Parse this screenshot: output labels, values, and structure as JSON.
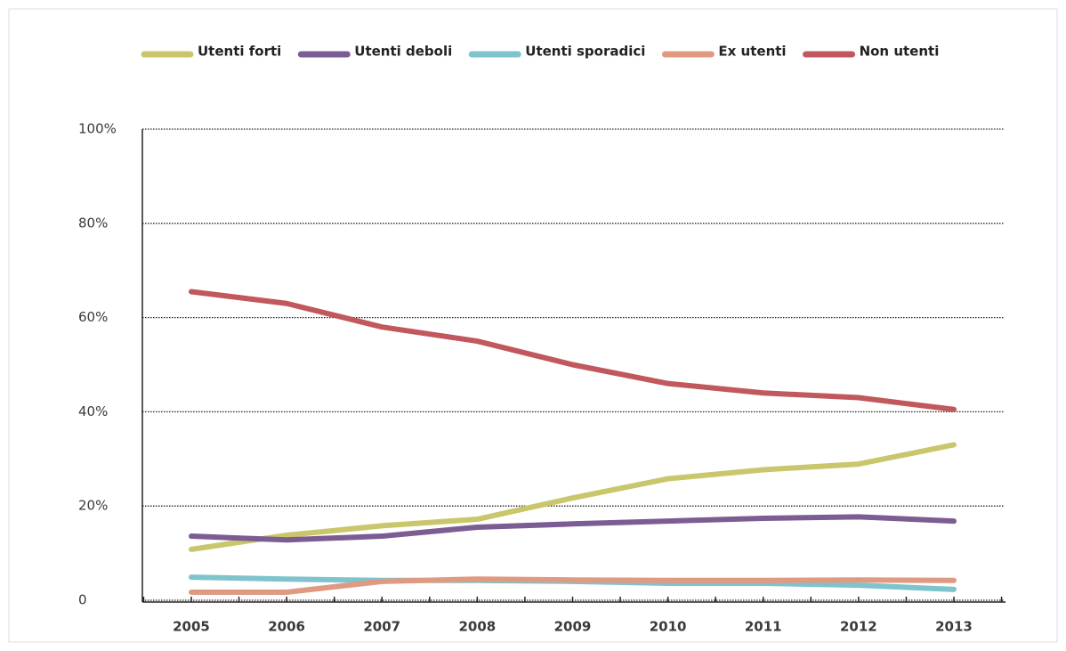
{
  "chart_data": {
    "type": "line",
    "categories": [
      "2005",
      "2006",
      "2007",
      "2008",
      "2009",
      "2010",
      "2011",
      "2012",
      "2013"
    ],
    "series": [
      {
        "name": "Utenti forti",
        "color": "#c9c66b",
        "values": [
          10.8,
          13.8,
          15.8,
          17.2,
          21.7,
          25.8,
          27.7,
          28.9,
          33
        ]
      },
      {
        "name": "Utenti deboli",
        "color": "#7b5c93",
        "values": [
          13.6,
          12.8,
          13.6,
          15.5,
          16.2,
          16.8,
          17.4,
          17.7,
          16.8
        ]
      },
      {
        "name": "Utenti sporadici",
        "color": "#7fc3cc",
        "values": [
          4.9,
          4.5,
          4.2,
          4.2,
          4,
          3.6,
          3.6,
          3.2,
          2.3
        ]
      },
      {
        "name": "Ex utenti",
        "color": "#e09a82",
        "values": [
          1.7,
          1.7,
          4,
          4.5,
          4.3,
          4.2,
          4.2,
          4.3,
          4.2
        ]
      },
      {
        "name": "Non utenti",
        "color": "#c0585d",
        "values": [
          65.5,
          63,
          58,
          55,
          50,
          46,
          44,
          43,
          40.5
        ]
      }
    ],
    "ylim": [
      0,
      100
    ],
    "yticks": [
      {
        "value": 100,
        "label": "100%"
      },
      {
        "value": 80,
        "label": "80%"
      },
      {
        "value": 60,
        "label": "60%"
      },
      {
        "value": 40,
        "label": "40%"
      },
      {
        "value": 20,
        "label": "20%"
      },
      0
    ],
    "grid": true,
    "legend": "top"
  }
}
